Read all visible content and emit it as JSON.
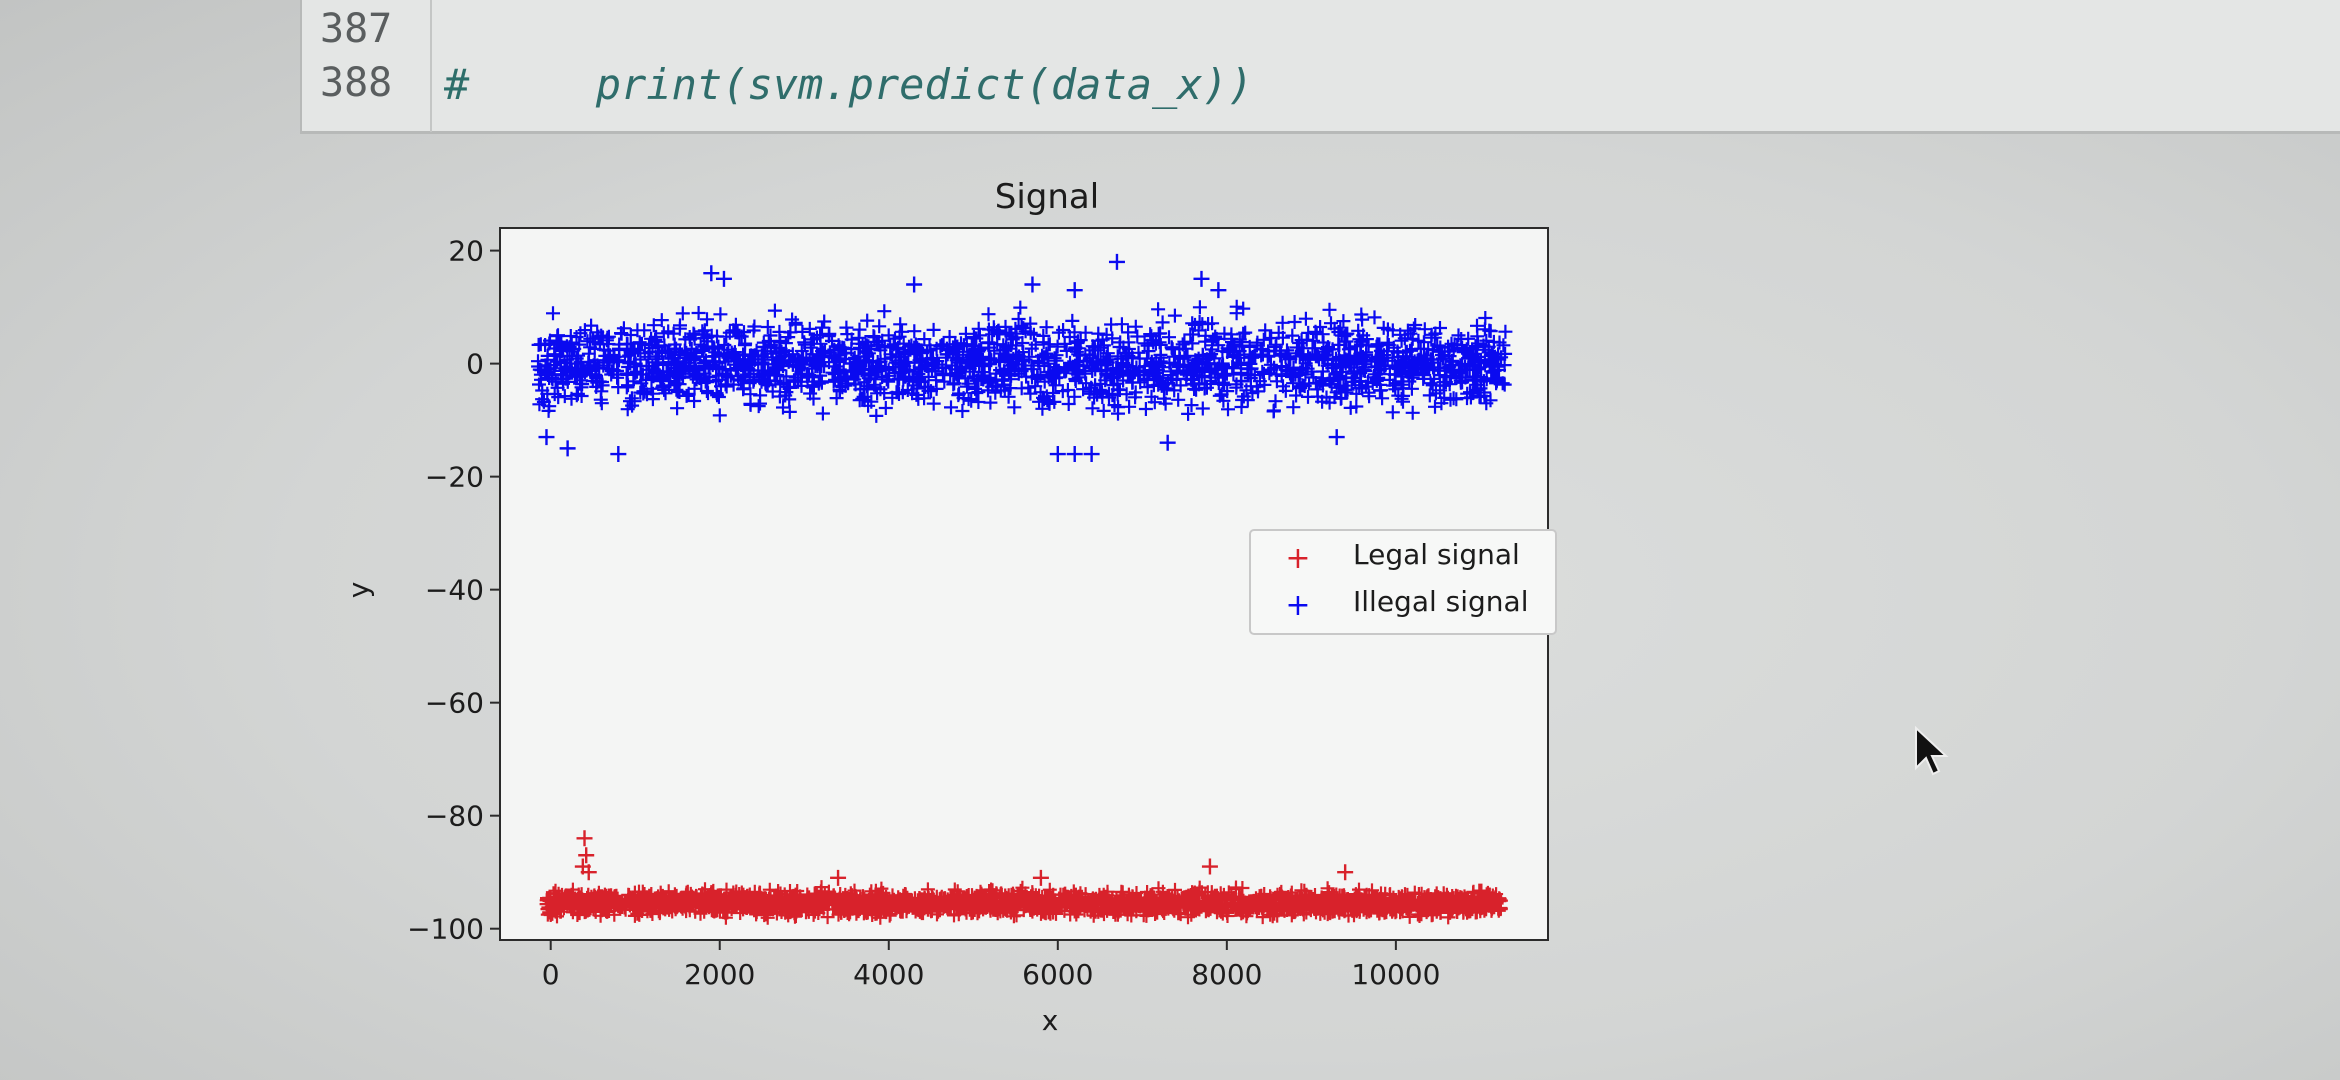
{
  "code_cell": {
    "lines": [
      {
        "number": "387",
        "hash": "",
        "text": ""
      },
      {
        "number": "388",
        "hash": "#",
        "text": "     print(svm.predict(data_x))"
      }
    ]
  },
  "colors": {
    "legal": "#d8222b",
    "illegal": "#0a0af0"
  },
  "chart_data": {
    "type": "scatter",
    "title": "Signal",
    "xlabel": "x",
    "ylabel": "y",
    "xlim": [
      -600,
      11800
    ],
    "ylim": [
      -102,
      24
    ],
    "xticks": [
      0,
      2000,
      4000,
      6000,
      8000,
      10000
    ],
    "yticks": [
      20,
      0,
      -20,
      -40,
      -60,
      -80,
      -100
    ],
    "xtick_labels": [
      "0",
      "2000",
      "4000",
      "6000",
      "8000",
      "10000"
    ],
    "ytick_labels": [
      "20",
      "0",
      "−20",
      "−40",
      "−60",
      "−80",
      "−100"
    ],
    "grid": false,
    "legend_position": "center-right",
    "series": [
      {
        "name": "Legal signal",
        "marker": "+",
        "x_range": [
          -50,
          11250
        ],
        "y_band": [
          -98,
          -93
        ],
        "outliers": [
          [
            400,
            -84
          ],
          [
            420,
            -87
          ],
          [
            380,
            -89
          ],
          [
            450,
            -90
          ],
          [
            7800,
            -89
          ],
          [
            3400,
            -91
          ],
          [
            9400,
            -90
          ],
          [
            5800,
            -91
          ]
        ]
      },
      {
        "name": "Illegal signal",
        "marker": "+",
        "x_range": [
          -150,
          11300
        ],
        "y_band": [
          -9,
          9
        ],
        "outliers": [
          [
            6700,
            18
          ],
          [
            1900,
            16
          ],
          [
            2050,
            15
          ],
          [
            7700,
            15
          ],
          [
            4300,
            14
          ],
          [
            5700,
            14
          ],
          [
            7900,
            13
          ],
          [
            6200,
            13
          ],
          [
            -50,
            -13
          ],
          [
            200,
            -15
          ],
          [
            800,
            -16
          ],
          [
            6000,
            -16
          ],
          [
            6200,
            -16
          ],
          [
            6400,
            -16
          ],
          [
            7300,
            -14
          ],
          [
            9300,
            -13
          ]
        ]
      }
    ]
  }
}
